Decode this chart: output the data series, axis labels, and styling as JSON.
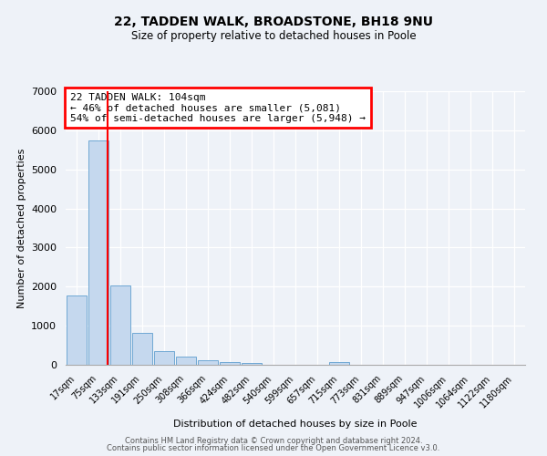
{
  "title": "22, TADDEN WALK, BROADSTONE, BH18 9NU",
  "subtitle": "Size of property relative to detached houses in Poole",
  "xlabel": "Distribution of detached houses by size in Poole",
  "ylabel": "Number of detached properties",
  "bar_labels": [
    "17sqm",
    "75sqm",
    "133sqm",
    "191sqm",
    "250sqm",
    "308sqm",
    "366sqm",
    "424sqm",
    "482sqm",
    "540sqm",
    "599sqm",
    "657sqm",
    "715sqm",
    "773sqm",
    "831sqm",
    "889sqm",
    "947sqm",
    "1006sqm",
    "1064sqm",
    "1122sqm",
    "1180sqm"
  ],
  "bar_values": [
    1780,
    5750,
    2040,
    820,
    340,
    200,
    110,
    60,
    40,
    0,
    0,
    0,
    60,
    0,
    0,
    0,
    0,
    0,
    0,
    0,
    0
  ],
  "bar_color": "#c5d8ee",
  "bar_edge_color": "#6fa8d4",
  "vline_color": "red",
  "vline_x_pos": 1.42,
  "annotation_title": "22 TADDEN WALK: 104sqm",
  "annotation_line1": "← 46% of detached houses are smaller (5,081)",
  "annotation_line2": "54% of semi-detached houses are larger (5,948) →",
  "annotation_box_color": "white",
  "annotation_box_edge": "red",
  "ylim": [
    0,
    7000
  ],
  "yticks": [
    0,
    1000,
    2000,
    3000,
    4000,
    5000,
    6000,
    7000
  ],
  "background_color": "#eef2f8",
  "grid_color": "#ffffff",
  "footer1": "Contains HM Land Registry data © Crown copyright and database right 2024.",
  "footer2": "Contains public sector information licensed under the Open Government Licence v3.0."
}
